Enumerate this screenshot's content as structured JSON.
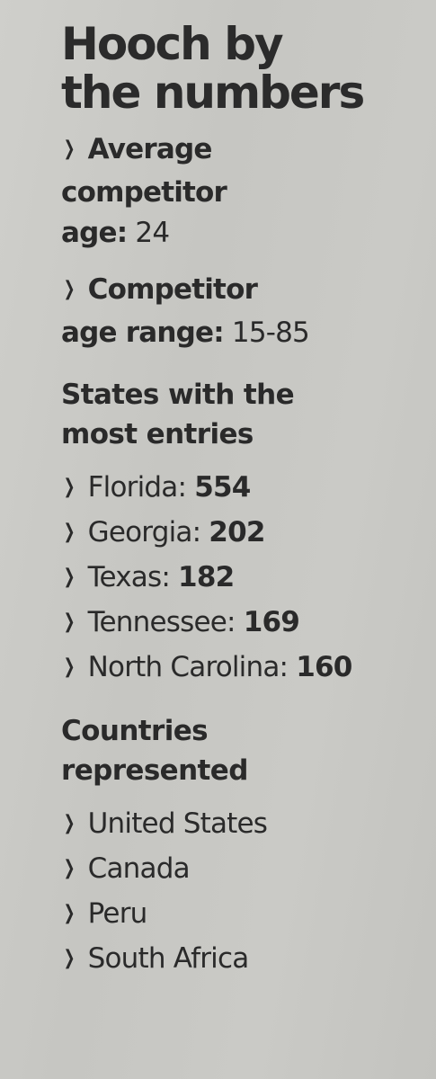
{
  "headline": {
    "line1": "Hooch by",
    "line2": "the numbers"
  },
  "stats": [
    {
      "label_lines": [
        "Average",
        "competitor",
        "age:"
      ],
      "value": "24"
    },
    {
      "label_lines": [
        "Competitor",
        "age range:"
      ],
      "value": "15-85"
    }
  ],
  "states_section": {
    "heading_lines": [
      "States with the",
      "most entries"
    ],
    "items": [
      {
        "name": "Florida:",
        "count": "554"
      },
      {
        "name": "Georgia:",
        "count": "202"
      },
      {
        "name": "Texas:",
        "count": "182"
      },
      {
        "name": "Tennessee:",
        "count": "169"
      },
      {
        "name": "North Carolina:",
        "count": "160"
      }
    ]
  },
  "countries_section": {
    "heading_lines": [
      "Countries",
      "represented"
    ],
    "items": [
      "United States",
      "Canada",
      "Peru",
      "South Africa"
    ]
  },
  "bullet_glyph": "❯",
  "colors": {
    "ink": "#2a2a2a",
    "paper": "#c9c9c5"
  }
}
